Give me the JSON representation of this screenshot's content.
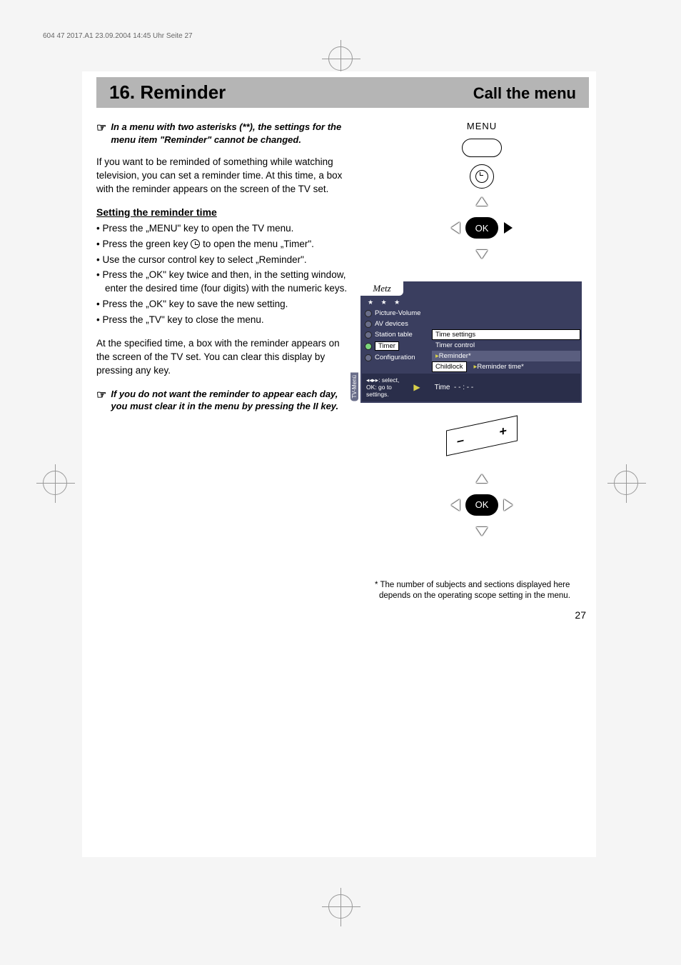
{
  "header_info": "604 47 2017.A1  23.09.2004  14:45 Uhr  Seite 27",
  "title_main": "16. Reminder",
  "title_right": "Call the menu",
  "note1": "In a menu with two asterisks (**), the settings for the menu item \"Reminder\" cannot be changed.",
  "intro": "If you want to be reminded of something while watching television, you can set a reminder time. At this time, a box with the reminder appears on the screen of the TV set.",
  "subhead": "Setting the reminder time",
  "steps": [
    "Press the „MENU\" key to open the TV menu.",
    "Press the green key __CLOCK__ to open the menu „Timer\".",
    "Use the cursor control key to select „Reminder\".",
    "Press the „OK\" key twice and then, in the setting window, enter the desired time (four digits) with the numeric keys.",
    "Press the „OK\" key to save the new setting.",
    "Press the „TV\" key to close the menu."
  ],
  "outro": "At the specified time, a box with the reminder appears on the screen of the TV set. You can clear this display by pressing any key.",
  "note2": "If you do not want the reminder to appear each day, you must clear it in the menu by pressing the II key.",
  "menu_label": "MENU",
  "ok_label": "OK",
  "osd": {
    "logo": "Metz",
    "stars": "★  ★  ★",
    "vtab": "TV-Menü",
    "sidebar": [
      {
        "label": "Picture-Volume",
        "active": false,
        "boxed": false
      },
      {
        "label": "AV devices",
        "active": false,
        "boxed": false
      },
      {
        "label": "Station table",
        "active": false,
        "boxed": false
      },
      {
        "label": "Timer",
        "active": true,
        "boxed": true
      },
      {
        "label": "Configuration",
        "active": false,
        "boxed": false
      }
    ],
    "submenu": [
      {
        "label": "Time settings",
        "style": "boxed"
      },
      {
        "label": "Timer control",
        "style": "plain"
      },
      {
        "label": "Reminder*",
        "style": "hl",
        "yellow_arrow": true
      },
      {
        "label": "Childlock",
        "style": "boxed"
      }
    ],
    "detail_label": "Reminder time*",
    "help_text": "◂◂▸▸: select,\nOK: go to\nsettings.",
    "status_time_label": "Time",
    "status_time_value": "- - : - -"
  },
  "plus": "+",
  "minus": "–",
  "footnote": "* The number of subjects and sections displayed here depends on the operating scope setting in the menu.",
  "page_num": "27"
}
